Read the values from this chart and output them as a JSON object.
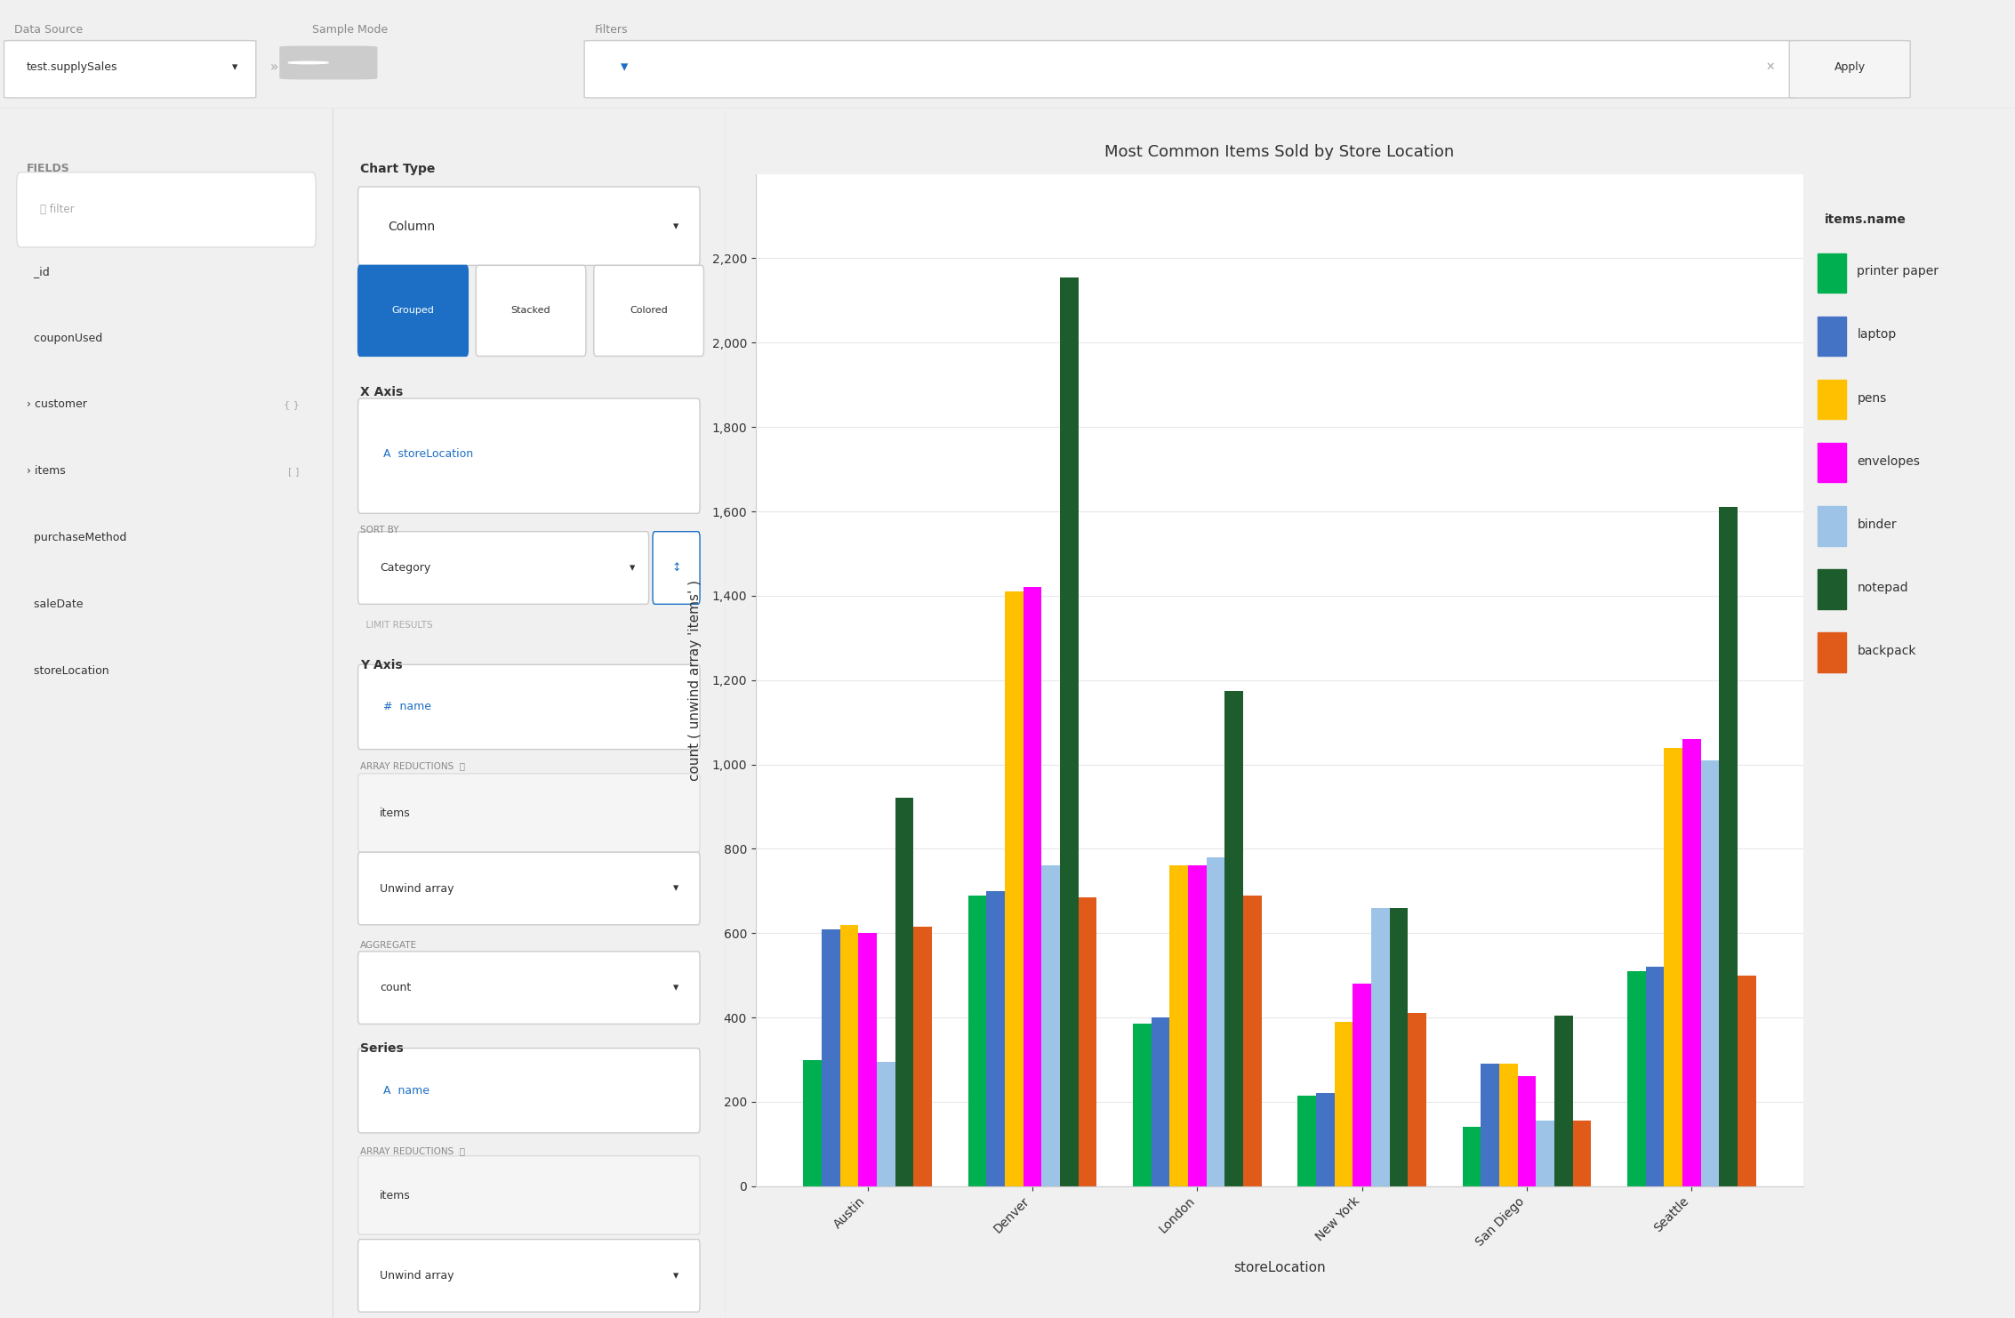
{
  "title": "Most Common Items Sold by Store Location",
  "xlabel": "storeLocation",
  "ylabel": "count ( unwind array 'items' )",
  "categories": [
    "Austin",
    "Denver",
    "London",
    "New York",
    "San Diego",
    "Seattle"
  ],
  "series": [
    {
      "name": "printer paper",
      "color": "#00b050",
      "values": [
        300,
        690,
        385,
        215,
        140,
        510
      ]
    },
    {
      "name": "laptop",
      "color": "#4472c4",
      "values": [
        610,
        700,
        400,
        220,
        290,
        520
      ]
    },
    {
      "name": "pens",
      "color": "#ffc000",
      "values": [
        620,
        1410,
        760,
        390,
        290,
        1040
      ]
    },
    {
      "name": "envelopes",
      "color": "#ff00ff",
      "values": [
        600,
        1420,
        760,
        480,
        260,
        1060
      ]
    },
    {
      "name": "binder",
      "color": "#9dc3e6",
      "values": [
        295,
        760,
        780,
        660,
        155,
        1010
      ]
    },
    {
      "name": "notepad",
      "color": "#1d5c2d",
      "values": [
        920,
        2155,
        1175,
        660,
        405,
        1610
      ]
    },
    {
      "name": "backpack",
      "color": "#e05a1a",
      "values": [
        615,
        685,
        690,
        410,
        155,
        500
      ]
    }
  ],
  "ylim": [
    0,
    2400
  ],
  "yticks": [
    0,
    200,
    400,
    600,
    800,
    1000,
    1200,
    1400,
    1600,
    1800,
    2000,
    2200
  ],
  "legend_title": "items.name",
  "bg_main": "#f0f0f0",
  "bg_chart": "#ffffff",
  "bg_panel": "#ffffff",
  "bg_topbar": "#f5f5f5",
  "grid_color": "#e8e8e8",
  "title_fontsize": 13,
  "axis_label_fontsize": 11,
  "tick_fontsize": 10,
  "legend_fontsize": 10,
  "ui_text_color": "#333333",
  "ui_text_light": "#888888",
  "accent_blue": "#1c6fc4",
  "fields": [
    "_id",
    "couponUsed",
    "customer",
    "items",
    "purchaseMethod",
    "saleDate",
    "storeLocation"
  ],
  "left_panel_labels": [
    "Chart Type",
    "X Axis",
    "Y Axis",
    "Series"
  ],
  "datasource": "test.supplySales"
}
